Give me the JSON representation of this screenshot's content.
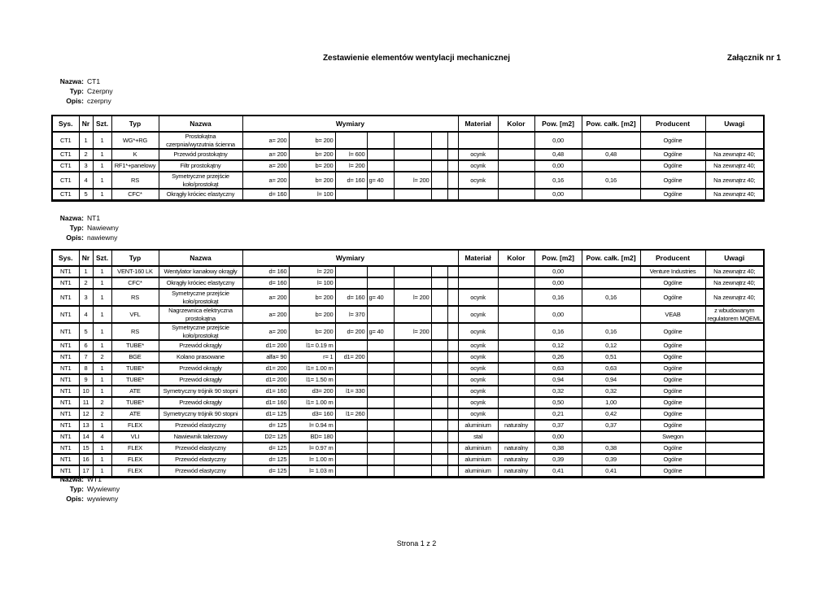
{
  "page": {
    "title": "Zestawienie elementów wentylacji mechanicznej",
    "attachment": "Załącznik nr 1",
    "footer": "Strona 1 z 2"
  },
  "labels": {
    "nazwa": "Nazwa:",
    "typ": "Typ:",
    "opis": "Opis:"
  },
  "table_headers": {
    "sys": "Sys.",
    "nr": "Nr",
    "szt": "Szt.",
    "typ": "Typ",
    "nazwa": "Nazwa",
    "wymiary": "Wymiary",
    "material": "Materiał",
    "kolor": "Kolor",
    "pow": "Pow. [m2]",
    "pow_calk": "Pow. całk. [m2]",
    "producent": "Producent",
    "uwagi": "Uwagi"
  },
  "sections": [
    {
      "nazwa": "CT1",
      "typ": "Czerpny",
      "opis": "czerpny",
      "rows": [
        {
          "sys": "CT1",
          "nr": "1",
          "szt": "1",
          "typ": "WG*+RG",
          "nazwa": "Prostokątna czerpnia/wyrzutnia ścienna",
          "dims": [
            "a= 200",
            "b= 200",
            "",
            "",
            "",
            "",
            ""
          ],
          "material": "",
          "kolor": "",
          "pow": "0,00",
          "pow_calk": "",
          "producent": "Ogólne",
          "uwagi": ""
        },
        {
          "sys": "CT1",
          "nr": "2",
          "szt": "1",
          "typ": "K",
          "nazwa": "Przewód prostokątny",
          "dims": [
            "a= 200",
            "b= 200",
            "l= 600",
            "",
            "",
            "",
            ""
          ],
          "material": "ocynk",
          "kolor": "",
          "pow": "0,48",
          "pow_calk": "0,48",
          "producent": "Ogólne",
          "uwagi": "Na zewnątrz 40;"
        },
        {
          "sys": "CT1",
          "nr": "3",
          "szt": "1",
          "typ": "RF1*+panelowy",
          "nazwa": "Filtr prostokątny",
          "dims": [
            "a= 200",
            "b= 200",
            "l= 200",
            "",
            "",
            "",
            ""
          ],
          "material": "ocynk",
          "kolor": "",
          "pow": "0,00",
          "pow_calk": "",
          "producent": "Ogólne",
          "uwagi": "Na zewnątrz 40;"
        },
        {
          "sys": "CT1",
          "nr": "4",
          "szt": "1",
          "typ": "RS",
          "nazwa": "Symetryczne przejście koło/prostokąt",
          "dims": [
            "a= 200",
            "b= 200",
            "d= 160",
            "g= 40",
            "l= 200",
            "",
            ""
          ],
          "material": "ocynk",
          "kolor": "",
          "pow": "0,16",
          "pow_calk": "0,16",
          "producent": "Ogólne",
          "uwagi": "Na zewnątrz 40;"
        },
        {
          "sys": "CT1",
          "nr": "5",
          "szt": "1",
          "typ": "CFC*",
          "nazwa": "Okrągły króciec elastyczny",
          "dims": [
            "d= 160",
            "l= 100",
            "",
            "",
            "",
            "",
            ""
          ],
          "material": "",
          "kolor": "",
          "pow": "0,00",
          "pow_calk": "",
          "producent": "Ogólne",
          "uwagi": "Na zewnątrz 40;"
        }
      ]
    },
    {
      "nazwa": "NT1",
      "typ": "Nawiewny",
      "opis": "nawiewny",
      "rows": [
        {
          "sys": "NT1",
          "nr": "1",
          "szt": "1",
          "typ": "VENT-160 LK",
          "nazwa": "Wentylator kanałowy okrągły",
          "dims": [
            "d= 160",
            "l= 220",
            "",
            "",
            "",
            "",
            ""
          ],
          "material": "",
          "kolor": "",
          "pow": "0,00",
          "pow_calk": "",
          "producent": "Venture Industries",
          "uwagi": "Na zewnątrz 40;"
        },
        {
          "sys": "NT1",
          "nr": "2",
          "szt": "1",
          "typ": "CFC*",
          "nazwa": "Okrągły króciec elastyczny",
          "dims": [
            "d= 160",
            "l= 100",
            "",
            "",
            "",
            "",
            ""
          ],
          "material": "",
          "kolor": "",
          "pow": "0,00",
          "pow_calk": "",
          "producent": "Ogólne",
          "uwagi": "Na zewnątrz 40;"
        },
        {
          "sys": "NT1",
          "nr": "3",
          "szt": "1",
          "typ": "RS",
          "nazwa": "Symetryczne przejście koło/prostokąt",
          "dims": [
            "a= 200",
            "b= 200",
            "d= 160",
            "g= 40",
            "l= 200",
            "",
            ""
          ],
          "material": "ocynk",
          "kolor": "",
          "pow": "0,16",
          "pow_calk": "0,16",
          "producent": "Ogólne",
          "uwagi": "Na zewnątrz 40;"
        },
        {
          "sys": "NT1",
          "nr": "4",
          "szt": "1",
          "typ": "VFL",
          "nazwa": "Nagrzewnica elektryczna prostokątna",
          "dims": [
            "a= 200",
            "b= 200",
            "l= 370",
            "",
            "",
            "",
            ""
          ],
          "material": "ocynk",
          "kolor": "",
          "pow": "0,00",
          "pow_calk": "",
          "producent": "VEAB",
          "uwagi": "z wbudowanym regulatorem MQEML"
        },
        {
          "sys": "NT1",
          "nr": "5",
          "szt": "1",
          "typ": "RS",
          "nazwa": "Symetryczne przejście koło/prostokąt",
          "dims": [
            "a= 200",
            "b= 200",
            "d= 200",
            "g= 40",
            "l= 200",
            "",
            ""
          ],
          "material": "ocynk",
          "kolor": "",
          "pow": "0,16",
          "pow_calk": "0,16",
          "producent": "Ogólne",
          "uwagi": ""
        },
        {
          "sys": "NT1",
          "nr": "6",
          "szt": "1",
          "typ": "TUBE*",
          "nazwa": "Przewód okrągły",
          "dims": [
            "d1= 200",
            "l1= 0.19 m",
            "",
            "",
            "",
            "",
            ""
          ],
          "material": "ocynk",
          "kolor": "",
          "pow": "0,12",
          "pow_calk": "0,12",
          "producent": "Ogólne",
          "uwagi": ""
        },
        {
          "sys": "NT1",
          "nr": "7",
          "szt": "2",
          "typ": "BGE",
          "nazwa": "Kolano prasowane",
          "dims": [
            "alfa= 90",
            "r= 1",
            "d1= 200",
            "",
            "",
            "",
            ""
          ],
          "material": "ocynk",
          "kolor": "",
          "pow": "0,26",
          "pow_calk": "0,51",
          "producent": "Ogólne",
          "uwagi": ""
        },
        {
          "sys": "NT1",
          "nr": "8",
          "szt": "1",
          "typ": "TUBE*",
          "nazwa": "Przewód okrągły",
          "dims": [
            "d1= 200",
            "l1= 1.00 m",
            "",
            "",
            "",
            "",
            ""
          ],
          "material": "ocynk",
          "kolor": "",
          "pow": "0,63",
          "pow_calk": "0,63",
          "producent": "Ogólne",
          "uwagi": ""
        },
        {
          "sys": "NT1",
          "nr": "9",
          "szt": "1",
          "typ": "TUBE*",
          "nazwa": "Przewód okrągły",
          "dims": [
            "d1= 200",
            "l1= 1.50 m",
            "",
            "",
            "",
            "",
            ""
          ],
          "material": "ocynk",
          "kolor": "",
          "pow": "0,94",
          "pow_calk": "0,94",
          "producent": "Ogólne",
          "uwagi": ""
        },
        {
          "sys": "NT1",
          "nr": "10",
          "szt": "1",
          "typ": "ATE",
          "nazwa": "Symetryczny trójnik 90 stopni",
          "dims": [
            "d1= 160",
            "d3= 200",
            "l1= 330",
            "",
            "",
            "",
            ""
          ],
          "material": "ocynk",
          "kolor": "",
          "pow": "0,32",
          "pow_calk": "0,32",
          "producent": "Ogólne",
          "uwagi": ""
        },
        {
          "sys": "NT1",
          "nr": "11",
          "szt": "2",
          "typ": "TUBE*",
          "nazwa": "Przewód okrągły",
          "dims": [
            "d1= 160",
            "l1= 1.00 m",
            "",
            "",
            "",
            "",
            ""
          ],
          "material": "ocynk",
          "kolor": "",
          "pow": "0,50",
          "pow_calk": "1,00",
          "producent": "Ogólne",
          "uwagi": ""
        },
        {
          "sys": "NT1",
          "nr": "12",
          "szt": "2",
          "typ": "ATE",
          "nazwa": "Symetryczny trójnik 90 stopni",
          "dims": [
            "d1= 125",
            "d3= 160",
            "l1= 260",
            "",
            "",
            "",
            ""
          ],
          "material": "ocynk",
          "kolor": "",
          "pow": "0,21",
          "pow_calk": "0,42",
          "producent": "Ogólne",
          "uwagi": ""
        },
        {
          "sys": "NT1",
          "nr": "13",
          "szt": "1",
          "typ": "FLEX",
          "nazwa": "Przewód elastyczny",
          "dims": [
            "d= 125",
            "l= 0.94 m",
            "",
            "",
            "",
            "",
            ""
          ],
          "material": "aluminium",
          "kolor": "naturalny",
          "pow": "0,37",
          "pow_calk": "0,37",
          "producent": "Ogólne",
          "uwagi": ""
        },
        {
          "sys": "NT1",
          "nr": "14",
          "szt": "4",
          "typ": "VLI",
          "nazwa": "Nawiewnik talerzowy",
          "dims": [
            "D2= 125",
            "BD= 180",
            "",
            "",
            "",
            "",
            ""
          ],
          "material": "stal",
          "kolor": "",
          "pow": "0,00",
          "pow_calk": "",
          "producent": "Swegon",
          "uwagi": ""
        },
        {
          "sys": "NT1",
          "nr": "15",
          "szt": "1",
          "typ": "FLEX",
          "nazwa": "Przewód elastyczny",
          "dims": [
            "d= 125",
            "l= 0.97 m",
            "",
            "",
            "",
            "",
            ""
          ],
          "material": "aluminium",
          "kolor": "naturalny",
          "pow": "0,38",
          "pow_calk": "0,38",
          "producent": "Ogólne",
          "uwagi": ""
        },
        {
          "sys": "NT1",
          "nr": "16",
          "szt": "1",
          "typ": "FLEX",
          "nazwa": "Przewód elastyczny",
          "dims": [
            "d= 125",
            "l= 1.00 m",
            "",
            "",
            "",
            "",
            ""
          ],
          "material": "aluminium",
          "kolor": "naturalny",
          "pow": "0,39",
          "pow_calk": "0,39",
          "producent": "Ogólne",
          "uwagi": ""
        },
        {
          "sys": "NT1",
          "nr": "17",
          "szt": "1",
          "typ": "FLEX",
          "nazwa": "Przewód elastyczny",
          "dims": [
            "d= 125",
            "l= 1.03 m",
            "",
            "",
            "",
            "",
            ""
          ],
          "material": "aluminium",
          "kolor": "naturalny",
          "pow": "0,41",
          "pow_calk": "0,41",
          "producent": "Ogólne",
          "uwagi": ""
        }
      ]
    },
    {
      "nazwa": "WT1",
      "typ": "Wywiewny",
      "opis": "wywiewny",
      "rows": []
    }
  ]
}
